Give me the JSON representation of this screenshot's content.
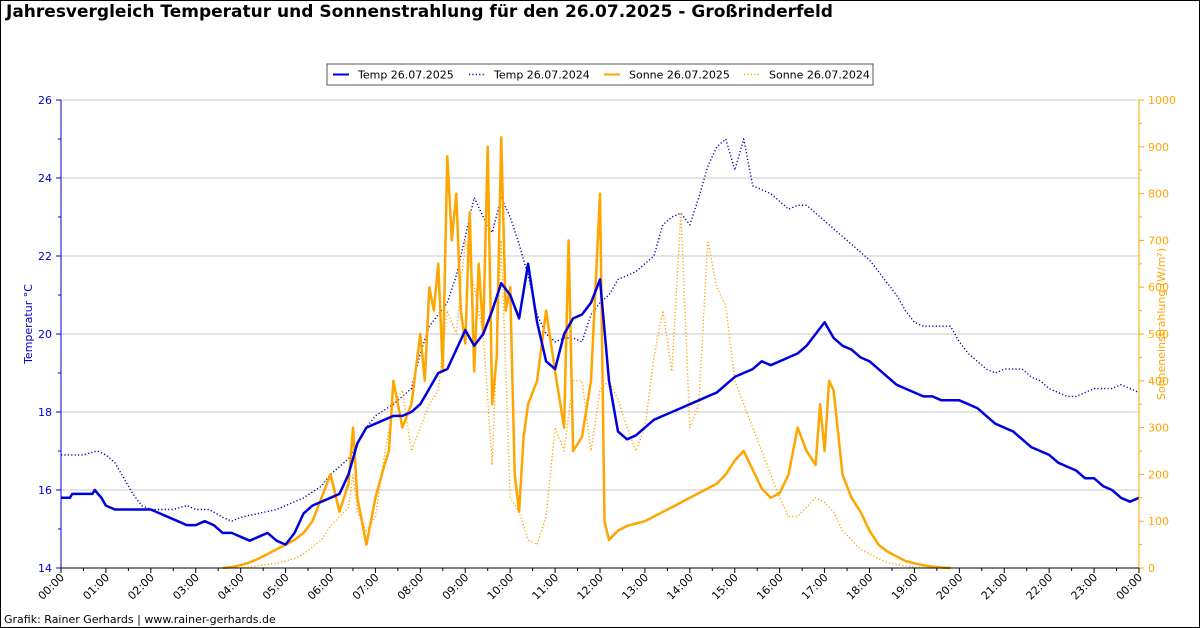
{
  "page": {
    "title": "Jahresvergleich Temperatur und Sonnenstrahlung für den 26.07.2025 - Großrinderfeld",
    "footer": "Grafik: Rainer Gerhards | www.rainer-gerhards.de"
  },
  "chart_data": {
    "type": "line",
    "title": "Jahresvergleich Temperatur und Sonnenstrahlung für den 26.07.2025 - Großrinderfeld",
    "xlabel": "",
    "ylabel_left": "Temperatur °C",
    "ylabel_right": "Sonneneinstrahlung (W/m²)",
    "xlim_hours": [
      0,
      24
    ],
    "ylim_left": [
      14,
      26
    ],
    "ylim_right": [
      0,
      1000
    ],
    "x_tick_labels": [
      "00:00",
      "01:00",
      "02:00",
      "03:00",
      "04:00",
      "05:00",
      "06:00",
      "07:00",
      "08:00",
      "09:00",
      "10:00",
      "11:00",
      "12:00",
      "13:00",
      "14:00",
      "15:00",
      "16:00",
      "17:00",
      "18:00",
      "19:00",
      "20:00",
      "21:00",
      "22:00",
      "23:00",
      "00:00"
    ],
    "y_left_ticks": [
      14,
      16,
      18,
      20,
      22,
      24,
      26
    ],
    "y_right_ticks": [
      0,
      100,
      200,
      300,
      400,
      500,
      600,
      700,
      800,
      900,
      1000
    ],
    "grid": true,
    "legend_position": "top-center",
    "series": [
      {
        "name": "Temp 26.07.2025",
        "axis": "left",
        "color": "#0000dd",
        "style": "solid",
        "x": [
          0,
          0.2,
          0.25,
          0.5,
          0.7,
          0.75,
          0.9,
          1,
          1.2,
          1.5,
          1.8,
          2,
          2.2,
          2.4,
          2.6,
          2.8,
          3,
          3.2,
          3.4,
          3.6,
          3.8,
          4,
          4.2,
          4.4,
          4.6,
          4.8,
          5,
          5.2,
          5.4,
          5.6,
          5.8,
          6,
          6.2,
          6.4,
          6.6,
          6.8,
          7,
          7.2,
          7.4,
          7.6,
          7.8,
          8,
          8.2,
          8.4,
          8.6,
          8.8,
          9,
          9.2,
          9.4,
          9.6,
          9.8,
          10,
          10.2,
          10.4,
          10.6,
          10.8,
          11,
          11.2,
          11.4,
          11.6,
          11.8,
          12,
          12.2,
          12.4,
          12.6,
          12.8,
          13,
          13.2,
          13.4,
          13.6,
          13.8,
          14,
          14.2,
          14.4,
          14.6,
          14.8,
          15,
          15.2,
          15.4,
          15.6,
          15.8,
          16,
          16.2,
          16.4,
          16.6,
          16.8,
          17,
          17.2,
          17.4,
          17.6,
          17.8,
          18,
          18.2,
          18.4,
          18.6,
          18.8,
          19,
          19.2,
          19.4,
          19.6,
          19.8,
          20,
          20.2,
          20.4,
          20.6,
          20.8,
          21,
          21.2,
          21.4,
          21.6,
          21.8,
          22,
          22.2,
          22.4,
          22.6,
          22.8,
          23,
          23.2,
          23.4,
          23.6,
          23.8,
          24
        ],
        "y": [
          15.8,
          15.8,
          15.9,
          15.9,
          15.9,
          16.0,
          15.8,
          15.6,
          15.5,
          15.5,
          15.5,
          15.5,
          15.4,
          15.3,
          15.2,
          15.1,
          15.1,
          15.2,
          15.1,
          14.9,
          14.9,
          14.8,
          14.7,
          14.8,
          14.9,
          14.7,
          14.6,
          14.9,
          15.4,
          15.6,
          15.7,
          15.8,
          15.9,
          16.4,
          17.2,
          17.6,
          17.7,
          17.8,
          17.9,
          17.9,
          18.0,
          18.2,
          18.6,
          19.0,
          19.1,
          19.6,
          20.1,
          19.7,
          20.0,
          20.6,
          21.3,
          21.0,
          20.4,
          21.8,
          20.3,
          19.3,
          19.1,
          20.0,
          20.4,
          20.5,
          20.8,
          21.4,
          18.8,
          17.5,
          17.3,
          17.4,
          17.6,
          17.8,
          17.9,
          18.0,
          18.1,
          18.2,
          18.3,
          18.4,
          18.5,
          18.7,
          18.9,
          19.0,
          19.1,
          19.3,
          19.2,
          19.3,
          19.4,
          19.5,
          19.7,
          20.0,
          20.3,
          19.9,
          19.7,
          19.6,
          19.4,
          19.3,
          19.1,
          18.9,
          18.7,
          18.6,
          18.5,
          18.4,
          18.4,
          18.3,
          18.3,
          18.3,
          18.2,
          18.1,
          17.9,
          17.7,
          17.6,
          17.5,
          17.3,
          17.1,
          17.0,
          16.9,
          16.7,
          16.6,
          16.5,
          16.3,
          16.3,
          16.1,
          16.0,
          15.8,
          15.7,
          15.8
        ]
      },
      {
        "name": "Temp 26.07.2024",
        "axis": "left",
        "color": "#0000aa",
        "style": "dotted",
        "x": [
          0,
          0.5,
          0.8,
          1,
          1.2,
          1.4,
          1.6,
          1.8,
          2,
          2.5,
          2.8,
          3,
          3.3,
          3.6,
          3.8,
          4,
          4.4,
          4.8,
          5,
          5.4,
          5.8,
          6,
          6.4,
          6.8,
          7,
          7.4,
          7.8,
          8,
          8.2,
          8.4,
          8.6,
          8.8,
          9,
          9.2,
          9.4,
          9.6,
          9.8,
          10,
          10.2,
          10.4,
          10.6,
          10.8,
          11,
          11.2,
          11.4,
          11.6,
          11.8,
          12,
          12.2,
          12.4,
          12.6,
          12.8,
          13,
          13.2,
          13.4,
          13.6,
          13.8,
          14,
          14.2,
          14.4,
          14.6,
          14.8,
          15,
          15.2,
          15.4,
          15.6,
          15.8,
          16,
          16.2,
          16.4,
          16.6,
          16.8,
          17,
          17.2,
          17.4,
          17.6,
          17.8,
          18,
          18.2,
          18.4,
          18.6,
          18.8,
          19,
          19.2,
          19.4,
          19.6,
          19.8,
          20,
          20.2,
          20.4,
          20.6,
          20.8,
          21,
          21.2,
          21.4,
          21.6,
          21.8,
          22,
          22.2,
          22.4,
          22.6,
          22.8,
          23,
          23.2,
          23.4,
          23.6,
          23.8,
          24
        ],
        "y": [
          16.9,
          16.9,
          17.0,
          16.9,
          16.7,
          16.3,
          15.9,
          15.6,
          15.5,
          15.5,
          15.6,
          15.5,
          15.5,
          15.3,
          15.2,
          15.3,
          15.4,
          15.5,
          15.6,
          15.8,
          16.1,
          16.4,
          16.8,
          17.6,
          17.9,
          18.2,
          18.6,
          19.5,
          20.2,
          20.5,
          20.8,
          21.5,
          22.5,
          23.5,
          23.0,
          22.6,
          23.5,
          23.0,
          22.3,
          21.5,
          20.5,
          20.0,
          19.8,
          19.9,
          19.9,
          19.8,
          20.5,
          20.8,
          21.0,
          21.4,
          21.5,
          21.6,
          21.8,
          22.0,
          22.8,
          23.0,
          23.1,
          22.8,
          23.5,
          24.3,
          24.8,
          25.0,
          24.2,
          25.0,
          23.8,
          23.7,
          23.6,
          23.4,
          23.2,
          23.3,
          23.3,
          23.1,
          22.9,
          22.7,
          22.5,
          22.3,
          22.1,
          21.9,
          21.6,
          21.3,
          21.0,
          20.6,
          20.3,
          20.2,
          20.2,
          20.2,
          20.2,
          19.8,
          19.5,
          19.3,
          19.1,
          19.0,
          19.1,
          19.1,
          19.1,
          18.9,
          18.8,
          18.6,
          18.5,
          18.4,
          18.4,
          18.5,
          18.6,
          18.6,
          18.6,
          18.7,
          18.6,
          18.5
        ]
      },
      {
        "name": "Sonne 26.07.2025",
        "axis": "right",
        "color": "#ffa500",
        "style": "solid",
        "x": [
          3.6,
          3.8,
          4,
          4.2,
          4.4,
          4.6,
          4.8,
          5,
          5.2,
          5.4,
          5.6,
          5.8,
          6,
          6.2,
          6.4,
          6.5,
          6.6,
          6.8,
          7,
          7.2,
          7.3,
          7.4,
          7.6,
          7.8,
          8,
          8.1,
          8.2,
          8.3,
          8.4,
          8.5,
          8.6,
          8.7,
          8.8,
          8.9,
          9,
          9.1,
          9.2,
          9.3,
          9.4,
          9.5,
          9.6,
          9.7,
          9.8,
          9.9,
          10,
          10.1,
          10.2,
          10.3,
          10.4,
          10.6,
          10.8,
          11,
          11.2,
          11.3,
          11.4,
          11.6,
          11.8,
          11.9,
          12,
          12.1,
          12.2,
          12.4,
          12.6,
          12.8,
          13,
          13.2,
          13.4,
          13.6,
          13.8,
          14,
          14.2,
          14.4,
          14.6,
          14.8,
          15,
          15.2,
          15.4,
          15.6,
          15.8,
          16,
          16.2,
          16.4,
          16.6,
          16.8,
          16.9,
          17,
          17.1,
          17.2,
          17.4,
          17.6,
          17.8,
          18,
          18.2,
          18.4,
          18.6,
          18.8,
          19,
          19.2,
          19.4,
          19.6,
          19.8
        ],
        "y": [
          0,
          2,
          6,
          12,
          20,
          30,
          40,
          50,
          60,
          75,
          100,
          150,
          200,
          120,
          180,
          300,
          150,
          50,
          150,
          220,
          250,
          400,
          300,
          350,
          500,
          400,
          600,
          550,
          650,
          420,
          880,
          700,
          800,
          550,
          480,
          760,
          420,
          650,
          500,
          900,
          350,
          450,
          920,
          550,
          600,
          200,
          120,
          280,
          350,
          400,
          550,
          420,
          300,
          700,
          250,
          280,
          400,
          600,
          800,
          100,
          60,
          80,
          90,
          95,
          100,
          110,
          120,
          130,
          140,
          150,
          160,
          170,
          180,
          200,
          230,
          250,
          210,
          170,
          150,
          160,
          200,
          300,
          250,
          220,
          350,
          250,
          400,
          380,
          200,
          150,
          120,
          80,
          50,
          35,
          25,
          15,
          10,
          6,
          3,
          1,
          0
        ]
      },
      {
        "name": "Sonne 26.07.2024",
        "axis": "right",
        "color": "#ffa500",
        "style": "dotted",
        "x": [
          4,
          4.4,
          4.8,
          5,
          5.2,
          5.4,
          5.6,
          5.8,
          6,
          6.2,
          6.4,
          6.5,
          6.6,
          6.8,
          7,
          7.2,
          7.4,
          7.6,
          7.8,
          8,
          8.2,
          8.4,
          8.6,
          8.8,
          9,
          9.2,
          9.4,
          9.6,
          9.8,
          10,
          10.2,
          10.4,
          10.6,
          10.8,
          11,
          11.2,
          11.4,
          11.6,
          11.8,
          12,
          12.2,
          12.4,
          12.6,
          12.8,
          13,
          13.2,
          13.4,
          13.6,
          13.8,
          14,
          14.2,
          14.4,
          14.6,
          14.8,
          15,
          15.2,
          15.4,
          15.6,
          15.8,
          16,
          16.2,
          16.4,
          16.6,
          16.8,
          17,
          17.2,
          17.4,
          17.6,
          17.8,
          18,
          18.2,
          18.4,
          18.6,
          18.8,
          19,
          19.2,
          19.4,
          19.6,
          19.8
        ],
        "y": [
          0,
          5,
          10,
          15,
          20,
          30,
          45,
          60,
          90,
          110,
          130,
          200,
          120,
          80,
          110,
          240,
          350,
          380,
          250,
          300,
          350,
          380,
          550,
          500,
          700,
          600,
          500,
          220,
          700,
          150,
          120,
          60,
          50,
          110,
          300,
          250,
          400,
          400,
          250,
          380,
          400,
          360,
          300,
          250,
          300,
          450,
          550,
          420,
          760,
          300,
          350,
          700,
          600,
          560,
          400,
          350,
          300,
          250,
          200,
          150,
          110,
          110,
          130,
          150,
          140,
          120,
          80,
          60,
          40,
          30,
          20,
          12,
          8,
          4,
          2,
          1,
          0,
          0,
          0
        ]
      }
    ]
  }
}
